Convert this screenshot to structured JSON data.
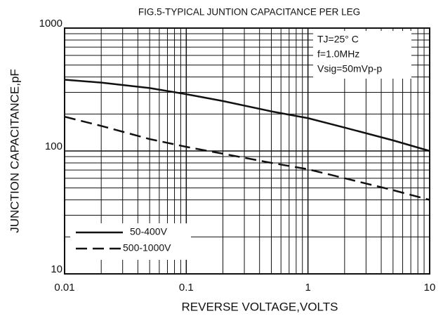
{
  "chart_data": {
    "type": "line",
    "title": "FIG.5-TYPICAL JUNTION CAPACITANCE PER LEG",
    "x_label": "REVERSE VOLTAGE,VOLTS",
    "y_label": "JUNCTION CAPACITANCE,pF",
    "annotations": [
      "TJ=25° C",
      "f=1.0MHz",
      "Vsig=50mVp-p"
    ],
    "x": [
      0.01,
      0.02,
      0.05,
      0.1,
      0.2,
      0.5,
      1,
      2,
      5,
      10
    ],
    "series": [
      {
        "name": "50-400V",
        "color": "#111111",
        "dash": false,
        "values": [
          380,
          360,
          325,
          290,
          255,
          210,
          185,
          155,
          122,
          100
        ]
      },
      {
        "name": "500-1000V",
        "color": "#111111",
        "dash": true,
        "values": [
          190,
          160,
          125,
          108,
          95,
          80,
          71,
          60,
          48,
          40
        ]
      }
    ],
    "xlim": [
      0.01,
      10
    ],
    "xticks": [
      0.01,
      0.1,
      1,
      10
    ],
    "ylim": [
      10,
      1000
    ],
    "yticks": [
      10,
      100,
      1000
    ],
    "xlog": true,
    "ylog": true,
    "grid": true
  }
}
